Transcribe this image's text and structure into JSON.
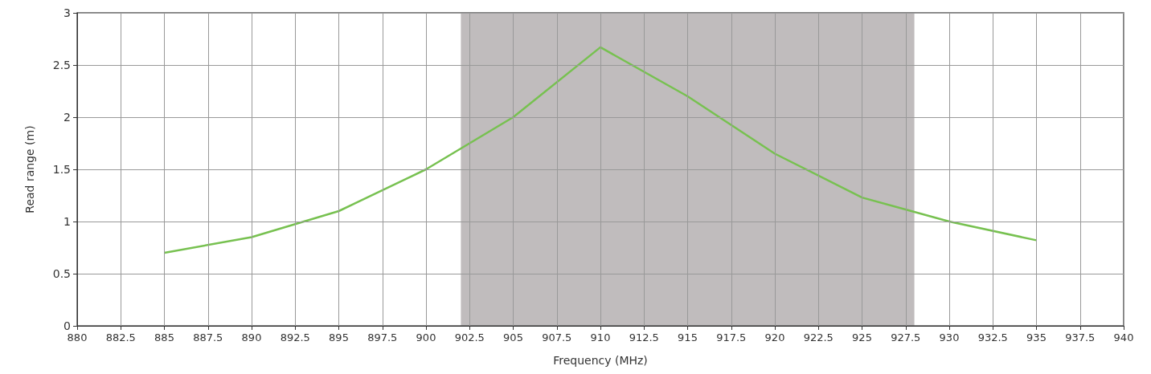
{
  "chart_data": {
    "type": "line",
    "xlabel": "Frequency (MHz)",
    "ylabel": "Read range (m)",
    "x": [
      885,
      890,
      895,
      900,
      905,
      910,
      915,
      920,
      925,
      930,
      935
    ],
    "series": [
      {
        "color": "#77c150",
        "values": [
          0.7,
          0.85,
          1.1,
          1.5,
          2.0,
          2.67,
          2.2,
          1.65,
          1.23,
          1.0,
          0.82
        ]
      }
    ],
    "xlim": [
      880,
      940
    ],
    "xticks": [
      880,
      882.5,
      885,
      887.5,
      890,
      892.5,
      895,
      897.5,
      900,
      902.5,
      905,
      907.5,
      910,
      912.5,
      915,
      917.5,
      920,
      922.5,
      925,
      927.5,
      930,
      932.5,
      935,
      937.5,
      940
    ],
    "ylim": [
      0,
      3
    ],
    "yticks": [
      0,
      0.5,
      1,
      1.5,
      2,
      2.5,
      3
    ],
    "bands": [
      {
        "axis": "x",
        "from": 902,
        "to": 928,
        "color": "#c0bcbd"
      }
    ],
    "grid": true,
    "marker": "none",
    "line_style": "solid"
  }
}
